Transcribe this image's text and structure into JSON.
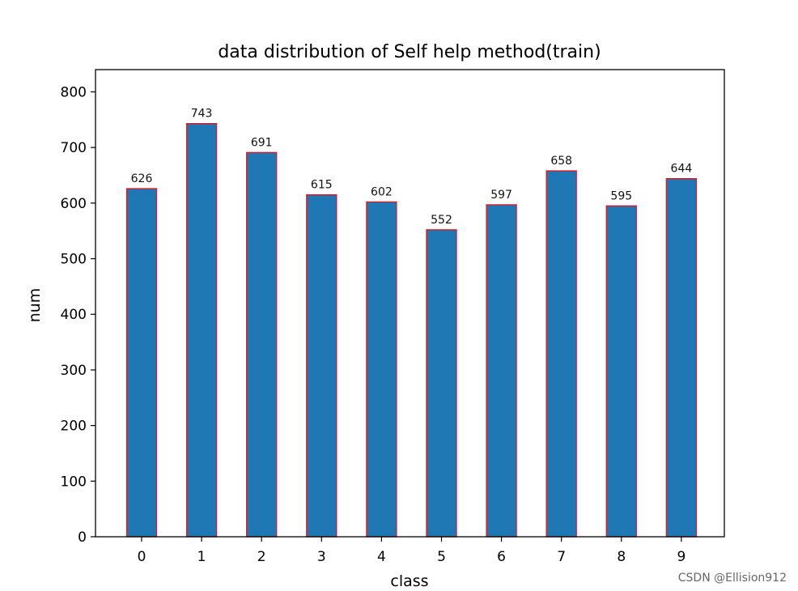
{
  "chart_data": {
    "type": "bar",
    "title": "data distribution of Self help method(train)",
    "xlabel": "class",
    "ylabel": "num",
    "categories": [
      "0",
      "1",
      "2",
      "3",
      "4",
      "5",
      "6",
      "7",
      "8",
      "9"
    ],
    "values": [
      626,
      743,
      691,
      615,
      602,
      552,
      597,
      658,
      595,
      644
    ],
    "ylim": [
      0,
      840
    ],
    "yticks": [
      0,
      100,
      200,
      300,
      400,
      500,
      600,
      700,
      800
    ],
    "grid": false,
    "legend": "none",
    "bar_color": "#1f77b4",
    "bar_edge_color": "#e8141c"
  },
  "watermark": "CSDN @Ellision912"
}
